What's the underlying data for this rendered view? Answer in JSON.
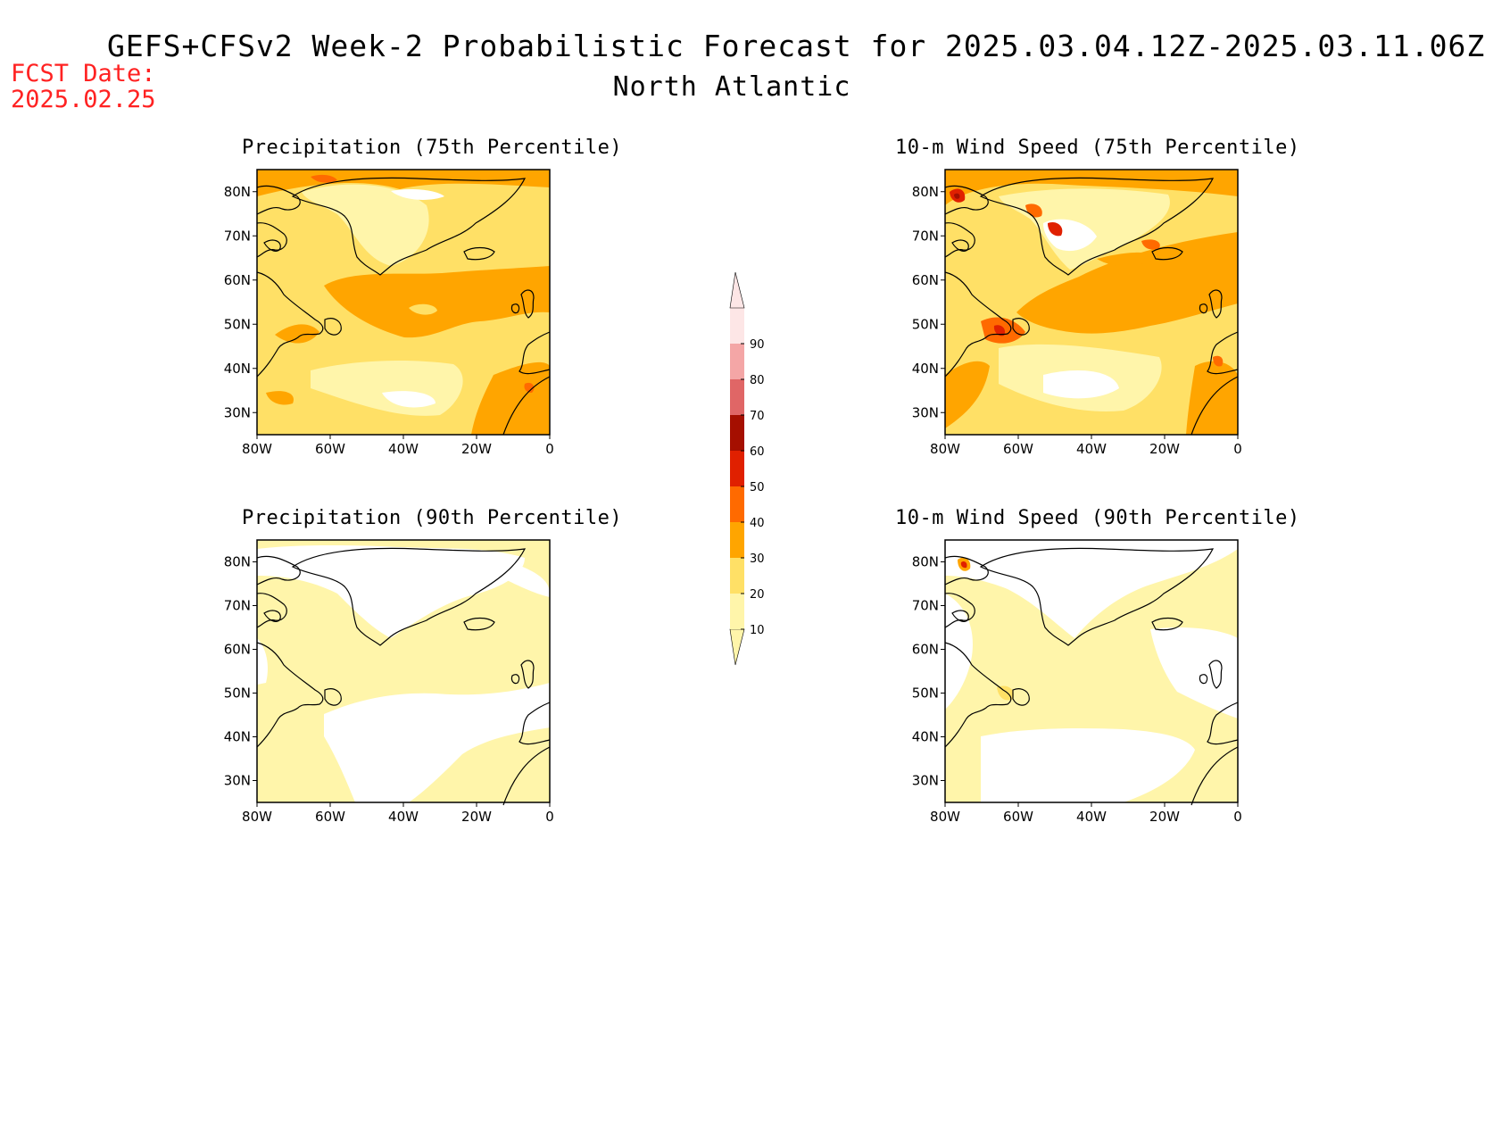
{
  "header": {
    "title": "GEFS+CFSv2 Week-2 Probabilistic Forecast for 2025.03.04.12Z-2025.03.11.06Z",
    "subtitle": "North Atlantic",
    "fcst_label": "FCST Date:",
    "fcst_date": "2025.02.25"
  },
  "axes": {
    "x_ticks": [
      "80W",
      "60W",
      "40W",
      "20W",
      "0"
    ],
    "y_ticks": [
      "80N",
      "70N",
      "60N",
      "50N",
      "40N",
      "30N"
    ]
  },
  "panels": [
    {
      "title": "Precipitation (75th Percentile)"
    },
    {
      "title": "10-m Wind Speed (75th Percentile)"
    },
    {
      "title": "Precipitation (90th Percentile)"
    },
    {
      "title": "10-m Wind Speed (90th Percentile)"
    }
  ],
  "colorbar": {
    "levels": [
      "10",
      "20",
      "30",
      "40",
      "50",
      "60",
      "70",
      "80",
      "90"
    ],
    "colors": [
      "#fff5aa",
      "#ffe066",
      "#ffa500",
      "#ff6a00",
      "#e02000",
      "#a50f00",
      "#e06666",
      "#f4a6a6",
      "#fde6e6"
    ]
  },
  "legend_colors": {
    "white": "#ffffff",
    "light_yellow": "#fff5aa",
    "yellow": "#ffe066",
    "orange": "#ffa500",
    "dark_orange": "#ff6a00",
    "red": "#e02000",
    "dark_red": "#a50f00"
  }
}
